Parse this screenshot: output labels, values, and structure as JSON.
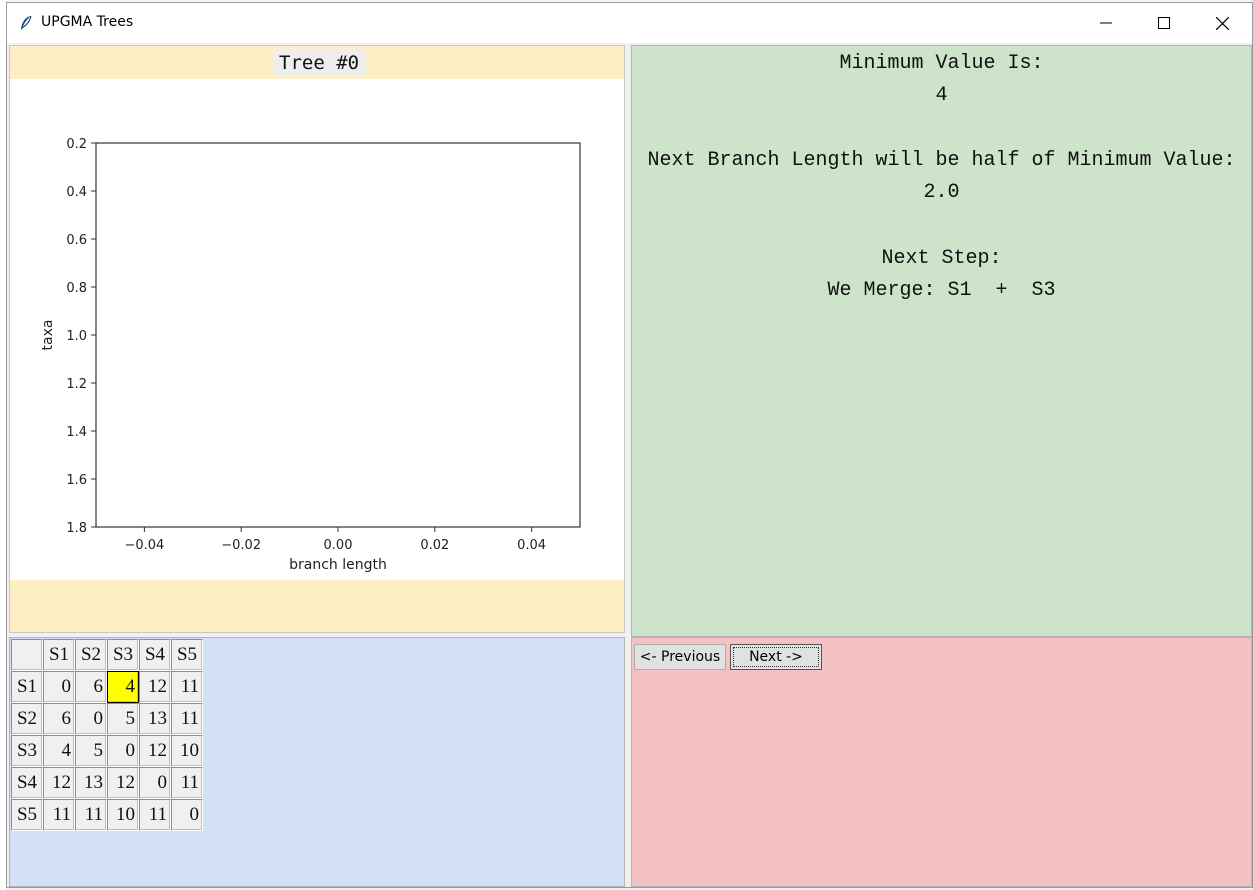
{
  "window": {
    "title": "UPGMA Trees"
  },
  "tree": {
    "heading": "Tree #0"
  },
  "chart_data": {
    "type": "scatter",
    "title": "",
    "xlabel": "branch length",
    "ylabel": "taxa",
    "xlim": [
      -0.05,
      0.05
    ],
    "ylim": [
      1.8,
      0.2
    ],
    "xticks": [
      -0.04,
      -0.02,
      0.0,
      0.02,
      0.04
    ],
    "xtick_labels": [
      "−0.04",
      "−0.02",
      "0.00",
      "0.02",
      "0.04"
    ],
    "yticks": [
      0.2,
      0.4,
      0.6,
      0.8,
      1.0,
      1.2,
      1.4,
      1.6,
      1.8
    ],
    "ytick_labels": [
      "0.2",
      "0.4",
      "0.6",
      "0.8",
      "1.0",
      "1.2",
      "1.4",
      "1.6",
      "1.8"
    ],
    "series": [],
    "grid": false
  },
  "info": {
    "min_label": "Minimum Value Is:",
    "min_value": "4",
    "branch_label": "Next Branch Length will be half of Minimum Value:",
    "branch_value": "2.0",
    "step_label": "Next Step:",
    "merge_text": "We Merge: S1  +  S3"
  },
  "matrix": {
    "headers": [
      "S1",
      "S2",
      "S3",
      "S4",
      "S5"
    ],
    "rows": [
      {
        "label": "S1",
        "values": [
          "0",
          "6",
          "4",
          "12",
          "11"
        ]
      },
      {
        "label": "S2",
        "values": [
          "6",
          "0",
          "5",
          "13",
          "11"
        ]
      },
      {
        "label": "S3",
        "values": [
          "4",
          "5",
          "0",
          "12",
          "10"
        ]
      },
      {
        "label": "S4",
        "values": [
          "12",
          "13",
          "12",
          "0",
          "11"
        ]
      },
      {
        "label": "S5",
        "values": [
          "11",
          "11",
          "10",
          "11",
          "0"
        ]
      }
    ],
    "highlight": {
      "row": 0,
      "col": 2,
      "color": "#ffff00"
    }
  },
  "nav": {
    "prev_label": "<- Previous",
    "next_label": "Next ->"
  },
  "colors": {
    "tree_header": "#fdefc3",
    "info_bg": "#cde4ca",
    "matrix_bg": "#d2e1f6",
    "nav_bg": "#f4c2c2"
  },
  "icons": {
    "app": "feather-icon",
    "minimize": "minimize-icon",
    "maximize": "maximize-icon",
    "close": "close-icon"
  }
}
